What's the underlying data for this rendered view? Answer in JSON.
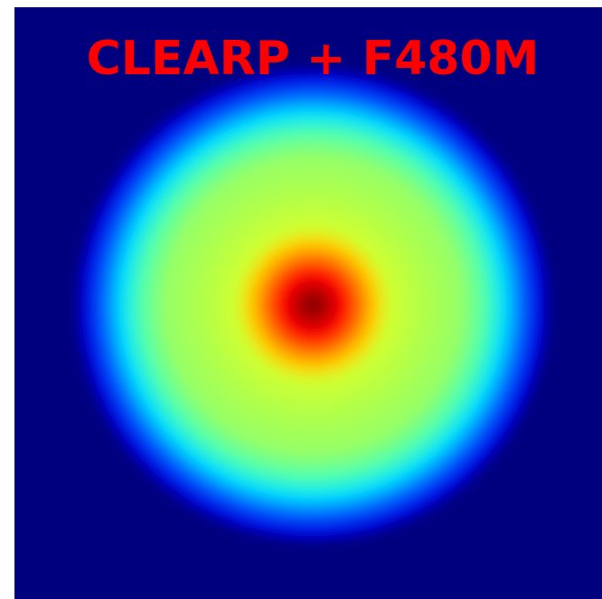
{
  "image": {
    "title": "CLEARP + F480M"
  }
}
